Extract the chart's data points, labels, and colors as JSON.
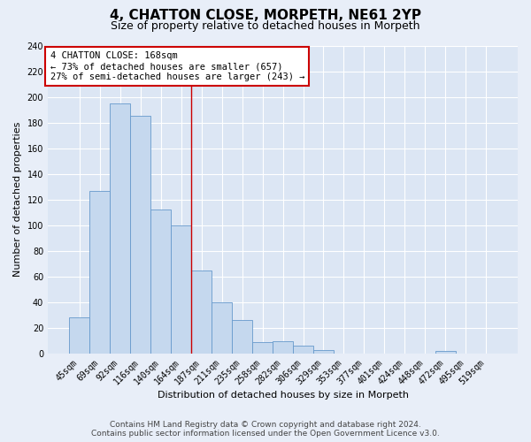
{
  "title": "4, CHATTON CLOSE, MORPETH, NE61 2YP",
  "subtitle": "Size of property relative to detached houses in Morpeth",
  "xlabel": "Distribution of detached houses by size in Morpeth",
  "ylabel": "Number of detached properties",
  "bar_labels": [
    "45sqm",
    "69sqm",
    "92sqm",
    "116sqm",
    "140sqm",
    "164sqm",
    "187sqm",
    "211sqm",
    "235sqm",
    "258sqm",
    "282sqm",
    "306sqm",
    "329sqm",
    "353sqm",
    "377sqm",
    "401sqm",
    "424sqm",
    "448sqm",
    "472sqm",
    "495sqm",
    "519sqm"
  ],
  "bar_values": [
    28,
    127,
    195,
    185,
    112,
    100,
    65,
    40,
    26,
    9,
    10,
    6,
    3,
    0,
    0,
    0,
    0,
    0,
    2,
    0,
    0
  ],
  "bar_color": "#c5d8ee",
  "bar_edge_color": "#6699cc",
  "ylim": [
    0,
    240
  ],
  "yticks": [
    0,
    20,
    40,
    60,
    80,
    100,
    120,
    140,
    160,
    180,
    200,
    220,
    240
  ],
  "property_line_x": 5.5,
  "property_line_color": "#cc0000",
  "annotation_line1": "4 CHATTON CLOSE: 168sqm",
  "annotation_line2": "← 73% of detached houses are smaller (657)",
  "annotation_line3": "27% of semi-detached houses are larger (243) →",
  "footer_line1": "Contains HM Land Registry data © Crown copyright and database right 2024.",
  "footer_line2": "Contains public sector information licensed under the Open Government Licence v3.0.",
  "background_color": "#e8eef8",
  "plot_background": "#dce6f4",
  "grid_color": "#c0cce0",
  "title_fontsize": 11,
  "subtitle_fontsize": 9,
  "axis_label_fontsize": 8,
  "tick_fontsize": 7,
  "footer_fontsize": 6.5
}
